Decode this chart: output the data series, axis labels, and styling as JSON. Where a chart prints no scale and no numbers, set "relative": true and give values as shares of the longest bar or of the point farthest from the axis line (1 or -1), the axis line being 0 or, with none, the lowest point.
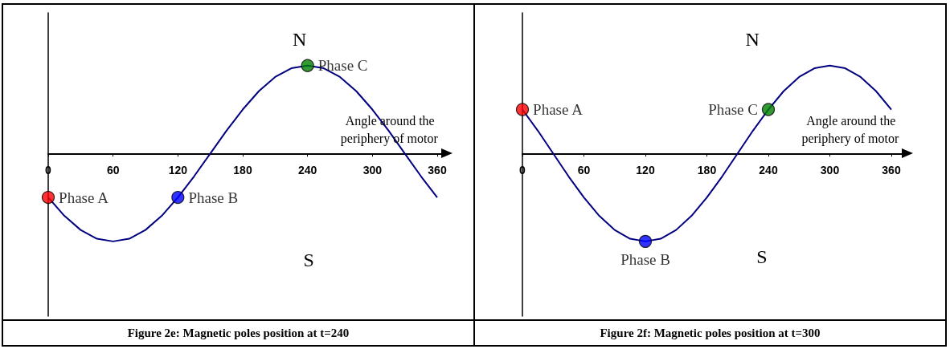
{
  "chart_data": [
    {
      "type": "line",
      "title": "Figure 2e: Magnetic poles position at t=240",
      "xlabel": "Angle around the periphery of motor",
      "relative": true,
      "xlim": [
        0,
        365
      ],
      "xticks": [
        0,
        60,
        120,
        180,
        240,
        300,
        360
      ],
      "x": [
        0,
        15,
        30,
        45,
        60,
        75,
        90,
        105,
        120,
        135,
        150,
        165,
        180,
        195,
        210,
        225,
        240,
        255,
        270,
        285,
        300,
        315,
        330,
        345,
        360
      ],
      "series": [
        {
          "color": "#000080",
          "values": [
            -0.5,
            -0.71,
            -0.87,
            -0.97,
            -1,
            -0.97,
            -0.87,
            -0.71,
            -0.5,
            -0.26,
            0,
            0.26,
            0.5,
            0.71,
            0.87,
            0.97,
            1,
            0.97,
            0.87,
            0.71,
            0.5,
            0.26,
            0,
            -0.26,
            -0.5
          ]
        },
        {
          "type": "scatter",
          "name": "Phase A",
          "color": "#ff0000",
          "x": [
            0
          ],
          "values": [
            -0.5
          ]
        },
        {
          "type": "scatter",
          "name": "Phase B",
          "color": "#0000ff",
          "x": [
            120
          ],
          "values": [
            -0.5
          ]
        },
        {
          "type": "scatter",
          "name": "Phase C",
          "color": "#008000",
          "x": [
            240
          ],
          "values": [
            1
          ]
        }
      ],
      "annotations": [
        "N",
        "S"
      ]
    },
    {
      "type": "line",
      "title": "Figure 2f: Magnetic poles position at t=300",
      "xlabel": "Angle around the periphery of motor",
      "relative": true,
      "xlim": [
        0,
        372
      ],
      "xticks": [
        0,
        60,
        120,
        180,
        240,
        300,
        360
      ],
      "x": [
        0,
        15,
        30,
        45,
        60,
        75,
        90,
        105,
        120,
        135,
        150,
        165,
        180,
        195,
        210,
        225,
        240,
        255,
        270,
        285,
        300,
        315,
        330,
        345,
        360
      ],
      "series": [
        {
          "color": "#000080",
          "values": [
            0.5,
            0.26,
            0,
            -0.26,
            -0.5,
            -0.71,
            -0.87,
            -0.97,
            -1,
            -0.97,
            -0.87,
            -0.71,
            -0.5,
            -0.26,
            0,
            0.26,
            0.5,
            0.71,
            0.87,
            0.97,
            1,
            0.97,
            0.87,
            0.71,
            0.5
          ]
        },
        {
          "type": "scatter",
          "name": "Phase A",
          "color": "#ff0000",
          "x": [
            0
          ],
          "values": [
            0.5
          ]
        },
        {
          "type": "scatter",
          "name": "Phase B",
          "color": "#0000ff",
          "x": [
            120
          ],
          "values": [
            -1
          ]
        },
        {
          "type": "scatter",
          "name": "Phase C",
          "color": "#008000",
          "x": [
            240
          ],
          "values": [
            0.5
          ]
        }
      ],
      "annotations": [
        "N",
        "S"
      ]
    }
  ]
}
